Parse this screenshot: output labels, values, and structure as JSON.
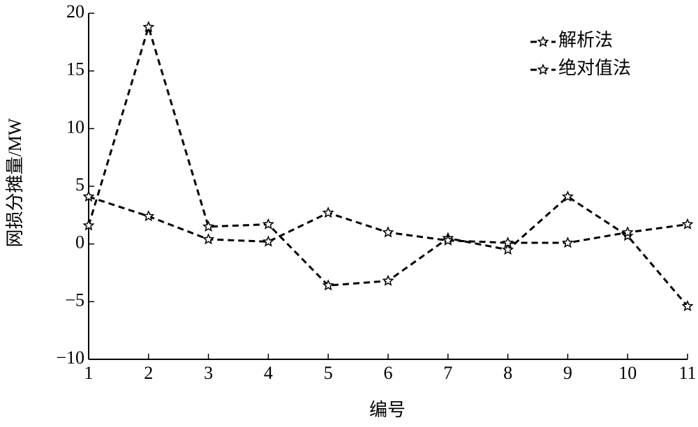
{
  "chart_data": {
    "type": "line",
    "x": [
      1,
      2,
      3,
      4,
      5,
      6,
      7,
      8,
      9,
      10,
      11
    ],
    "xlabel": "编号",
    "ylabel": "网损分摊量/MW",
    "xlim": [
      1,
      11
    ],
    "xticks": [
      1,
      2,
      3,
      4,
      5,
      6,
      7,
      8,
      9,
      10,
      11
    ],
    "ylim": [
      -10,
      20
    ],
    "yticks": [
      {
        "value": -10,
        "label": "−10"
      },
      {
        "value": -5,
        "label": "−5"
      },
      0,
      5,
      10,
      15,
      20
    ],
    "legend": "upper right",
    "series": [
      {
        "name": "解析法",
        "color": "#000000",
        "values": [
          1.6,
          18.8,
          1.5,
          1.7,
          -3.6,
          -3.2,
          0.5,
          -0.5,
          4.1,
          0.7,
          -5.4
        ]
      },
      {
        "name": "绝对值法",
        "color": "#000000",
        "values": [
          4.1,
          2.4,
          0.4,
          0.2,
          2.7,
          1.0,
          0.3,
          0.1,
          0.1,
          1.0,
          1.7
        ]
      }
    ]
  }
}
